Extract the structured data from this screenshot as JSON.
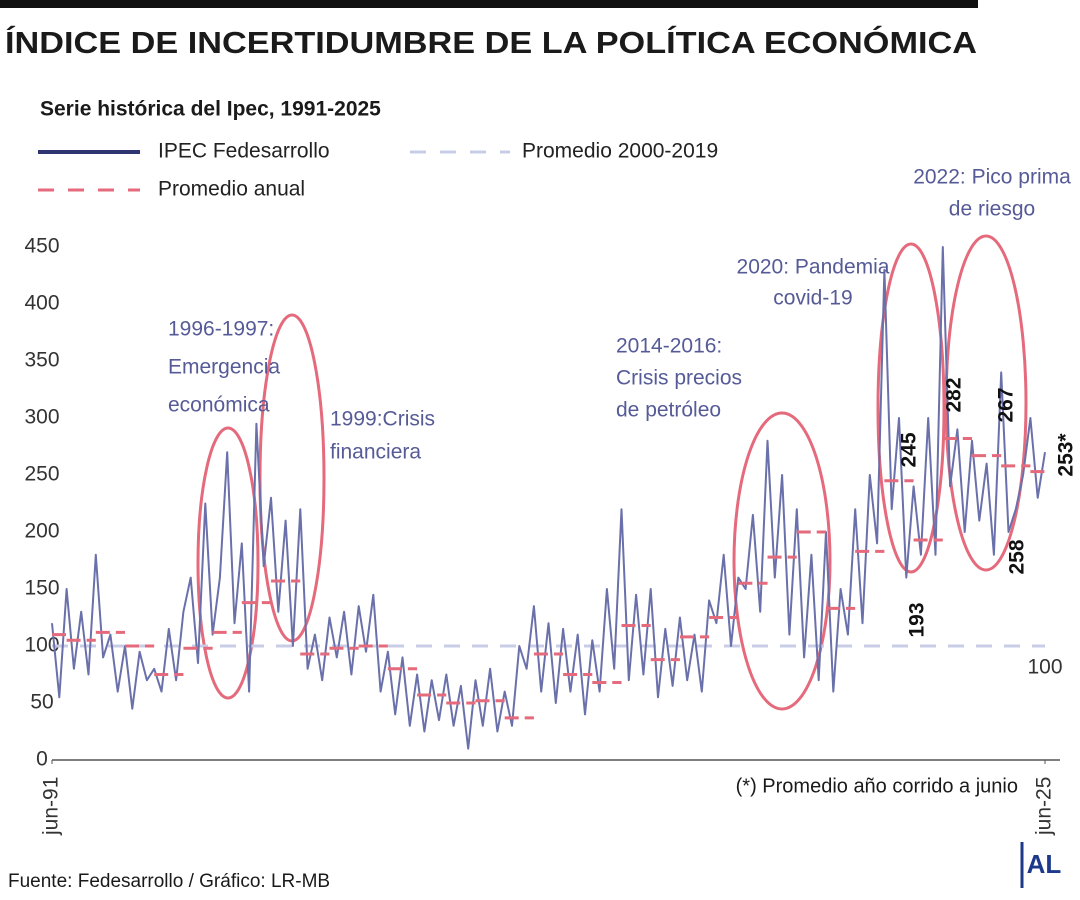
{
  "chart_data": {
    "type": "line",
    "title": "ÍNDICE DE INCERTIDUMBRE DE LA POLÍTICA ECONÓMICA",
    "subtitle": "Serie histórica del Ipec, 1991-2025",
    "note": "(*) Promedio año corrido a junio",
    "source": "Fuente: Fedesarrollo / Gráfico: LR-MB",
    "logo": "AL",
    "xlim": [
      1991.5,
      2025.5
    ],
    "xticks": [
      {
        "value": 1991.5,
        "label": "jun-91"
      },
      {
        "value": 2025.5,
        "label": "jun-25"
      }
    ],
    "ylim": [
      0,
      450
    ],
    "yticks": [
      0,
      50,
      100,
      150,
      200,
      250,
      300,
      350,
      400,
      450
    ],
    "grid": false,
    "series": [
      {
        "name": "IPEC Fedesarrollo",
        "color": "#6a70aa",
        "legend_color": "#2f3472",
        "x": [
          1991.5,
          1991.75,
          1992,
          1992.25,
          1992.5,
          1992.75,
          1993,
          1993.25,
          1993.5,
          1993.75,
          1994,
          1994.25,
          1994.5,
          1994.75,
          1995,
          1995.25,
          1995.5,
          1995.75,
          1996,
          1996.25,
          1996.5,
          1996.75,
          1997,
          1997.25,
          1997.5,
          1997.75,
          1998,
          1998.25,
          1998.5,
          1998.75,
          1999,
          1999.25,
          1999.5,
          1999.75,
          2000,
          2000.25,
          2000.5,
          2000.75,
          2001,
          2001.25,
          2001.5,
          2001.75,
          2002,
          2002.25,
          2002.5,
          2002.75,
          2003,
          2003.25,
          2003.5,
          2003.75,
          2004,
          2004.25,
          2004.5,
          2004.75,
          2005,
          2005.25,
          2005.5,
          2005.75,
          2006,
          2006.25,
          2006.5,
          2006.75,
          2007,
          2007.25,
          2007.5,
          2007.75,
          2008,
          2008.25,
          2008.5,
          2008.75,
          2009,
          2009.25,
          2009.5,
          2009.75,
          2010,
          2010.25,
          2010.5,
          2010.75,
          2011,
          2011.25,
          2011.5,
          2011.75,
          2012,
          2012.25,
          2012.5,
          2012.75,
          2013,
          2013.25,
          2013.5,
          2013.75,
          2014,
          2014.25,
          2014.5,
          2014.75,
          2015,
          2015.25,
          2015.5,
          2015.75,
          2016,
          2016.25,
          2016.5,
          2016.75,
          2017,
          2017.25,
          2017.5,
          2017.75,
          2018,
          2018.25,
          2018.5,
          2018.75,
          2019,
          2019.25,
          2019.5,
          2019.75,
          2020,
          2020.25,
          2020.5,
          2020.75,
          2021,
          2021.25,
          2021.5,
          2021.75,
          2022,
          2022.25,
          2022.5,
          2022.75,
          2023,
          2023.25,
          2023.5,
          2023.75,
          2024,
          2024.25,
          2024.5,
          2024.75,
          2025,
          2025.25,
          2025.5
        ],
        "values": [
          120,
          55,
          150,
          80,
          130,
          75,
          180,
          90,
          110,
          60,
          100,
          45,
          95,
          70,
          80,
          60,
          115,
          70,
          130,
          160,
          85,
          225,
          110,
          160,
          270,
          120,
          190,
          60,
          295,
          170,
          230,
          130,
          210,
          100,
          220,
          80,
          110,
          70,
          125,
          90,
          130,
          75,
          135,
          95,
          145,
          60,
          95,
          40,
          90,
          30,
          75,
          25,
          70,
          35,
          75,
          30,
          65,
          10,
          70,
          30,
          80,
          25,
          60,
          30,
          100,
          80,
          135,
          60,
          120,
          50,
          115,
          60,
          110,
          40,
          105,
          60,
          150,
          80,
          220,
          70,
          145,
          75,
          150,
          55,
          115,
          65,
          125,
          70,
          110,
          60,
          140,
          120,
          180,
          100,
          160,
          150,
          215,
          130,
          280,
          160,
          250,
          110,
          220,
          90,
          180,
          70,
          200,
          60,
          150,
          110,
          220,
          120,
          250,
          190,
          430,
          220,
          300,
          160,
          240,
          180,
          300,
          180,
          450,
          240,
          290,
          200,
          280,
          210,
          260,
          180,
          340,
          200,
          220,
          250,
          300,
          230,
          270
        ]
      },
      {
        "name": "Promedio anual",
        "color": "#e46a7c",
        "kind": "annual",
        "x": [
          1991,
          1992,
          1993,
          1994,
          1995,
          1996,
          1997,
          1998,
          1999,
          2000,
          2001,
          2002,
          2003,
          2004,
          2005,
          2006,
          2007,
          2008,
          2009,
          2010,
          2011,
          2012,
          2013,
          2014,
          2015,
          2016,
          2017,
          2018,
          2019,
          2020,
          2021,
          2022,
          2023,
          2024,
          2025
        ],
        "values": [
          110,
          105,
          112,
          100,
          75,
          98,
          112,
          138,
          157,
          93,
          98,
          100,
          80,
          57,
          50,
          52,
          37,
          93,
          75,
          68,
          118,
          88,
          108,
          125,
          155,
          178,
          200,
          133,
          183,
          245,
          193,
          282,
          267,
          258,
          253
        ],
        "value_labels": [
          null,
          null,
          null,
          null,
          null,
          null,
          null,
          null,
          null,
          null,
          null,
          null,
          null,
          null,
          null,
          null,
          null,
          null,
          null,
          null,
          null,
          null,
          null,
          null,
          null,
          null,
          null,
          null,
          null,
          "245",
          "193",
          "282",
          "267",
          "258",
          "253*"
        ]
      },
      {
        "name": "Promedio 2000-2019",
        "color": "#c8cce6",
        "kind": "reference",
        "value": 100,
        "value_label": "100"
      }
    ],
    "annotations": [
      {
        "lines": [
          "1996-1997:",
          "Emergencia",
          "económica"
        ]
      },
      {
        "lines": [
          "1999:Crisis",
          "financiera"
        ]
      },
      {
        "lines": [
          "2014-2016:",
          "Crisis precios",
          "de petróleo"
        ]
      },
      {
        "lines": [
          "2020: Pandemia",
          "covid-19"
        ]
      },
      {
        "lines": [
          "2022:  Pico prima",
          "de riesgo"
        ]
      }
    ]
  }
}
